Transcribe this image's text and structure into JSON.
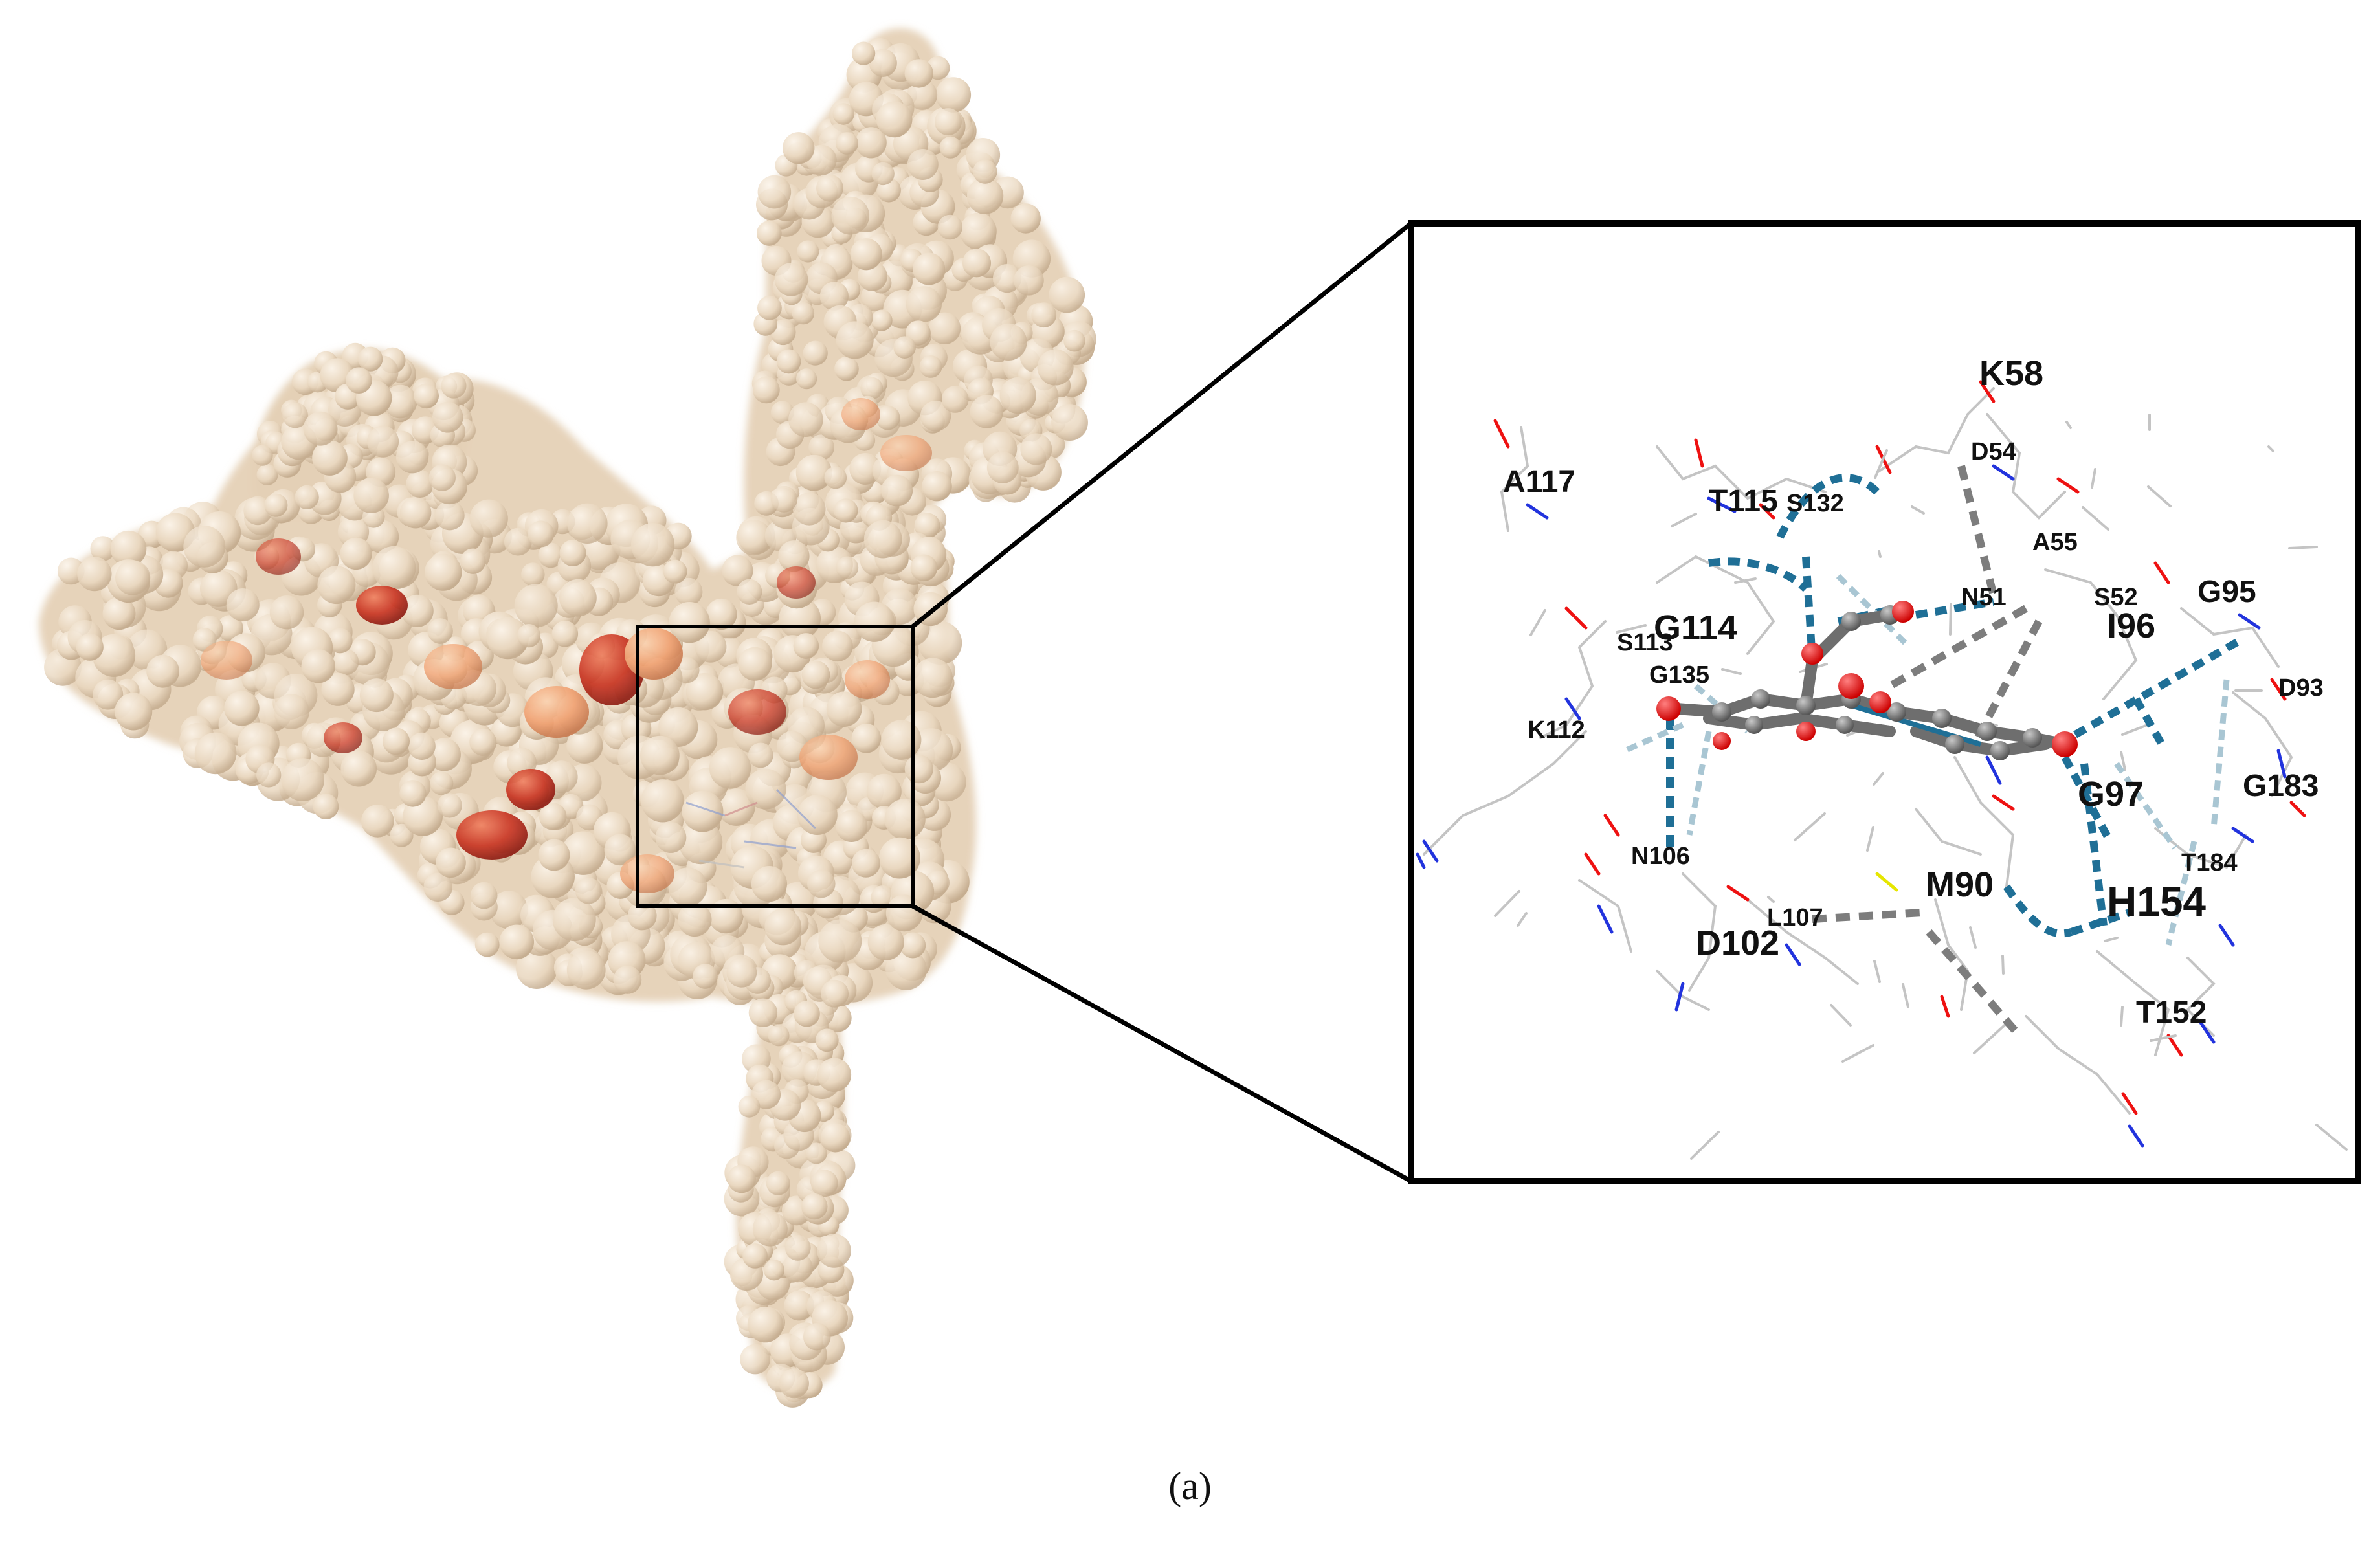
{
  "caption": "(a)",
  "residue_labels": [
    {
      "text": "K58",
      "size": "large"
    },
    {
      "text": "D54",
      "size": "small"
    },
    {
      "text": "A117",
      "size": "medium"
    },
    {
      "text": "T115",
      "size": "medium"
    },
    {
      "text": "S132",
      "size": "small"
    },
    {
      "text": "A55",
      "size": "small"
    },
    {
      "text": "N51",
      "size": "small"
    },
    {
      "text": "S52",
      "size": "small"
    },
    {
      "text": "G95",
      "size": "medium"
    },
    {
      "text": "I96",
      "size": "large"
    },
    {
      "text": "G114",
      "size": "large"
    },
    {
      "text": "S113",
      "size": "small"
    },
    {
      "text": "G135",
      "size": "small"
    },
    {
      "text": "D93",
      "size": "small"
    },
    {
      "text": "K112",
      "size": "small"
    },
    {
      "text": "G97",
      "size": "large"
    },
    {
      "text": "G183",
      "size": "medium"
    },
    {
      "text": "N106",
      "size": "small"
    },
    {
      "text": "T184",
      "size": "small"
    },
    {
      "text": "M90",
      "size": "large"
    },
    {
      "text": "H154",
      "size": "xlarge"
    },
    {
      "text": "L107",
      "size": "small"
    },
    {
      "text": "D102",
      "size": "large"
    },
    {
      "text": "T152",
      "size": "medium"
    }
  ],
  "colors": {
    "surface_base": "#ecdcc6",
    "surface_shade": "#c9b49a",
    "hotspot_light": "#f0a878",
    "hotspot_mid": "#d9603a",
    "hotspot_dark": "#b82418",
    "hbond_blue": "#1f6f96",
    "hbond_light": "#a9c6d3",
    "contact_gray": "#7d7d7d",
    "ligand_gray": "#6e6e6e",
    "oxygen_red": "#ee1111",
    "nitrogen_blue": "#2233dd",
    "sulfur_yellow": "#e6e600",
    "stick_gray": "#c4c4c4",
    "frame": "#000000"
  }
}
